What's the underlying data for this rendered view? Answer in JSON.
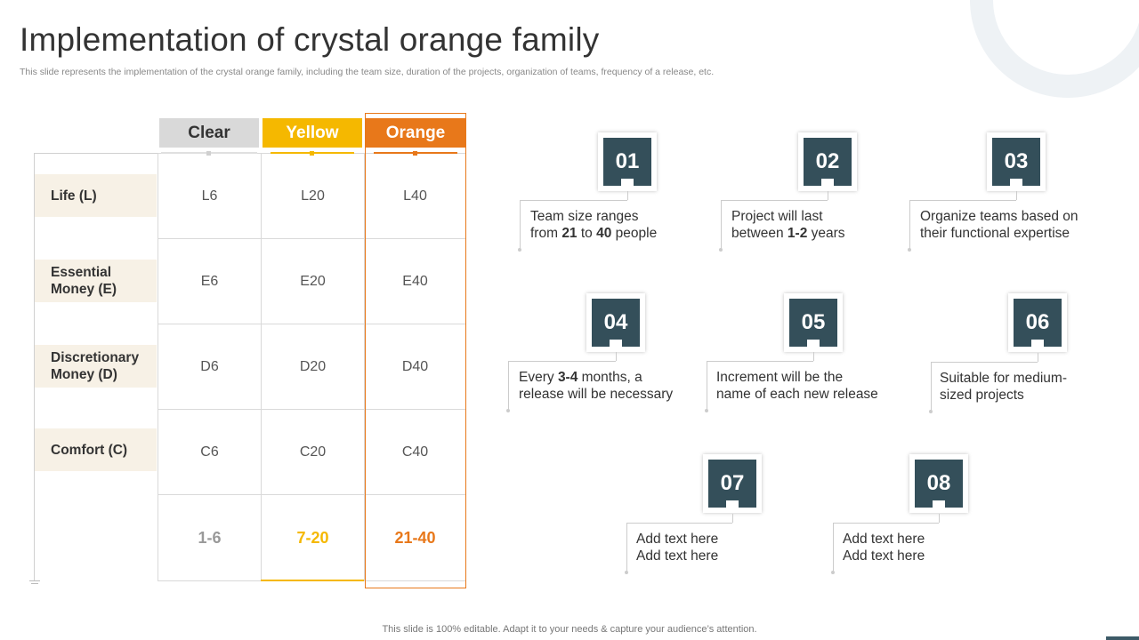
{
  "title": "Implementation of crystal orange family",
  "subtitle": "This slide represents the implementation of the crystal orange family, including the team size, duration of the projects, organization of teams, frequency of a release, etc.",
  "footer": "This slide is 100% editable. Adapt it to your needs & capture your audience’s attention.",
  "colors": {
    "clear": "#d9d9d9",
    "yellow": "#f5b800",
    "orange": "#e8781a",
    "badge": "#344f5a",
    "row_label_bg": "#f7f1e6"
  },
  "table": {
    "columns": [
      "Clear",
      "Yellow",
      "Orange"
    ],
    "rows": [
      {
        "label": "Life (L)",
        "values": [
          "L6",
          "L20",
          "L40"
        ]
      },
      {
        "label": "Essential Money (E)",
        "values": [
          "E6",
          "E20",
          "E40"
        ]
      },
      {
        "label": "Discretionary Money (D)",
        "values": [
          "D6",
          "D20",
          "D40"
        ]
      },
      {
        "label": "Comfort (C)",
        "values": [
          "C6",
          "C20",
          "C40"
        ]
      }
    ],
    "team_sizes": [
      "1-6",
      "7-20",
      "21-40"
    ]
  },
  "cards": [
    {
      "number": "01",
      "line1_pre": "Team size ranges",
      "line1_b": "",
      "line1_post": "",
      "line2_pre": "from ",
      "line2_b": "21",
      "line2_mid": " to ",
      "line2_b2": "40",
      "line2_post": " people"
    },
    {
      "number": "02",
      "line1_pre": "Project will last",
      "line1_b": "",
      "line1_post": "",
      "line2_pre": "between ",
      "line2_b": "1-2",
      "line2_mid": " years",
      "line2_b2": "",
      "line2_post": ""
    },
    {
      "number": "03",
      "line1_pre": "Organize teams based on",
      "line1_b": "",
      "line1_post": "",
      "line2_pre": "their functional  expertise",
      "line2_b": "",
      "line2_mid": "",
      "line2_b2": "",
      "line2_post": ""
    },
    {
      "number": "04",
      "line1_pre": "Every ",
      "line1_b": "3-4",
      "line1_post": " months, a",
      "line2_pre": "release will be necessary",
      "line2_b": "",
      "line2_mid": "",
      "line2_b2": "",
      "line2_post": ""
    },
    {
      "number": "05",
      "line1_pre": "Increment  will be the",
      "line1_b": "",
      "line1_post": "",
      "line2_pre": "name of each new release",
      "line2_b": "",
      "line2_mid": "",
      "line2_b2": "",
      "line2_post": ""
    },
    {
      "number": "06",
      "line1_pre": "Suitable for medium-",
      "line1_b": "",
      "line1_post": "",
      "line2_pre": "sized projects",
      "line2_b": "",
      "line2_mid": "",
      "line2_b2": "",
      "line2_post": ""
    },
    {
      "number": "07",
      "line1_pre": "Add text here",
      "line1_b": "",
      "line1_post": "",
      "line2_pre": "Add text here",
      "line2_b": "",
      "line2_mid": "",
      "line2_b2": "",
      "line2_post": ""
    },
    {
      "number": "08",
      "line1_pre": "Add text here",
      "line1_b": "",
      "line1_post": "",
      "line2_pre": "Add text here",
      "line2_b": "",
      "line2_mid": "",
      "line2_b2": "",
      "line2_post": ""
    }
  ]
}
